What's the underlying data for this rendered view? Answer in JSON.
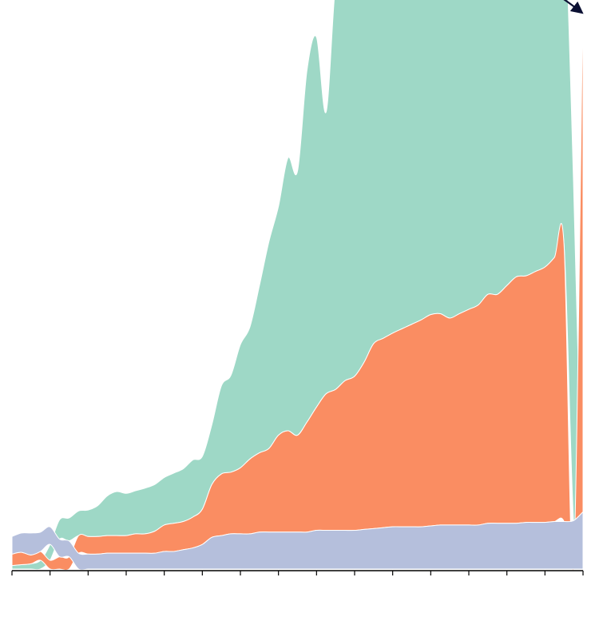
{
  "chart_data": {
    "type": "area",
    "stack_order": "ranked",
    "x": [
      0,
      1,
      2,
      3,
      4,
      5,
      6,
      7,
      8,
      9,
      10,
      11,
      12,
      13,
      14,
      15,
      16,
      17,
      18,
      19,
      20,
      21,
      22,
      23,
      24,
      25,
      26,
      27,
      28,
      29,
      30,
      31,
      32,
      33,
      34,
      35,
      36,
      37,
      38,
      39,
      40,
      41,
      42,
      43,
      44,
      45,
      46,
      47,
      48,
      49,
      50,
      51,
      52,
      53,
      54,
      55,
      56,
      57,
      58,
      59,
      60
    ],
    "xlim": [
      0,
      60
    ],
    "x_ticks": [
      0,
      4,
      8,
      12,
      16,
      20,
      24,
      28,
      32,
      36,
      40,
      44,
      48,
      52,
      56,
      60
    ],
    "ylim": [
      0,
      610
    ],
    "series": [
      {
        "color": "#9ed8c6",
        "values": [
          4,
          5,
          6,
          10,
          18,
          22,
          26,
          28,
          30,
          35,
          45,
          50,
          48,
          49,
          52,
          53,
          54,
          57,
          60,
          65,
          60,
          68,
          100,
          110,
          140,
          150,
          190,
          235,
          260,
          310,
          300,
          400,
          420,
          320,
          460,
          470,
          520,
          510,
          515,
          530,
          500,
          505,
          480,
          460,
          480,
          500,
          530,
          515,
          535,
          510,
          485,
          465,
          420,
          415,
          412,
          390,
          395,
          380,
          380,
          385,
          0
        ]
      },
      {
        "color": "#fa8d62",
        "values": [
          13,
          14,
          10,
          10,
          10,
          14,
          14,
          20,
          20,
          20,
          20,
          20,
          20,
          22,
          22,
          25,
          30,
          32,
          32,
          35,
          40,
          60,
          70,
          70,
          75,
          85,
          90,
          95,
          110,
          115,
          110,
          125,
          140,
          155,
          160,
          170,
          175,
          190,
          210,
          215,
          220,
          225,
          230,
          235,
          240,
          240,
          235,
          240,
          245,
          250,
          260,
          260,
          270,
          280,
          280,
          285,
          290,
          300,
          315,
          0,
          590
        ]
      },
      {
        "color": "#b5bfdc",
        "values": [
          20,
          22,
          25,
          22,
          20,
          20,
          18,
          18,
          17,
          17,
          18,
          18,
          18,
          18,
          18,
          18,
          20,
          20,
          22,
          24,
          28,
          36,
          38,
          40,
          40,
          40,
          42,
          42,
          42,
          42,
          42,
          42,
          44,
          44,
          44,
          44,
          44,
          45,
          46,
          47,
          48,
          48,
          48,
          48,
          49,
          50,
          50,
          50,
          50,
          50,
          52,
          52,
          52,
          52,
          53,
          53,
          53,
          54,
          54,
          55,
          65
        ]
      }
    ],
    "annotations": [
      {
        "type": "curved-arrow",
        "from": [
          32,
          0.62
        ],
        "to": [
          58,
          0.59
        ],
        "style": "dashed"
      }
    ]
  }
}
